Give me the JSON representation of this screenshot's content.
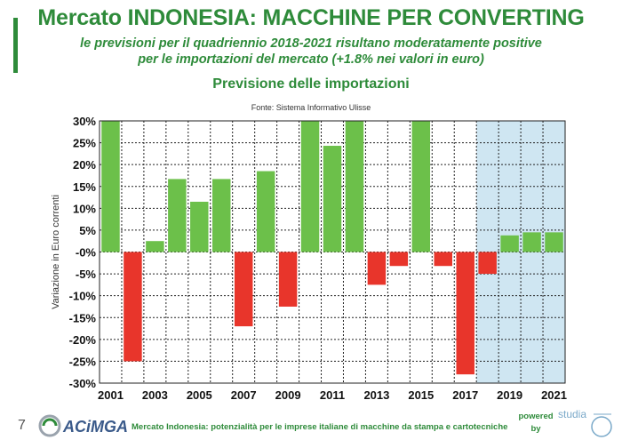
{
  "header": {
    "title": "Mercato INDONESIA: MACCHINE PER CONVERTING",
    "subtitle_line1": "le previsioni per il quadriennio 2018-2021 risultano moderatamente positive",
    "subtitle_line2": "per le importazioni del mercato (+1.8% nei valori in euro)"
  },
  "footer": {
    "page_number": "7",
    "logo_text": "ACiMGA",
    "text": "Mercato Indonesia: potenzialità per le imprese italiane di macchine da stampa e cartotecniche",
    "powered": "powered",
    "by": "by",
    "studia_text": "studia"
  },
  "colors": {
    "positive": "#6cc04a",
    "negative": "#e8352b",
    "forecast_bg": "#cfe6f2",
    "accent": "#2e8b3a"
  },
  "chart_data": {
    "type": "bar",
    "title": "Previsione delle importazioni",
    "source": "Fonte: Sistema Informativo Ulisse",
    "ylabel": "Variazione in Euro correnti",
    "xlabel": "",
    "ylim": [
      -30,
      30
    ],
    "yticks": [
      "30%",
      "25%",
      "20%",
      "15%",
      "10%",
      "5%",
      "-0%",
      "-5%",
      "-10%",
      "-15%",
      "-20%",
      "-25%",
      "-30%"
    ],
    "categories": [
      "2001",
      "2002",
      "2003",
      "2004",
      "2005",
      "2006",
      "2007",
      "2008",
      "2009",
      "2010",
      "2011",
      "2012",
      "2013",
      "2014",
      "2015",
      "2016",
      "2017",
      "2018",
      "2019",
      "2020",
      "2021"
    ],
    "xtick_labels": [
      "2001",
      "2003",
      "2005",
      "2007",
      "2009",
      "2011",
      "2013",
      "2015",
      "2017",
      "2019",
      "2021"
    ],
    "values": [
      30,
      -25,
      2.5,
      16.7,
      11.5,
      16.7,
      -17,
      18.5,
      -12.5,
      30,
      24.3,
      30,
      -7.5,
      -3.2,
      30,
      -3.2,
      -28,
      -5,
      3.8,
      4.5,
      4.5
    ],
    "forecast_start": "2018",
    "grid": true
  }
}
